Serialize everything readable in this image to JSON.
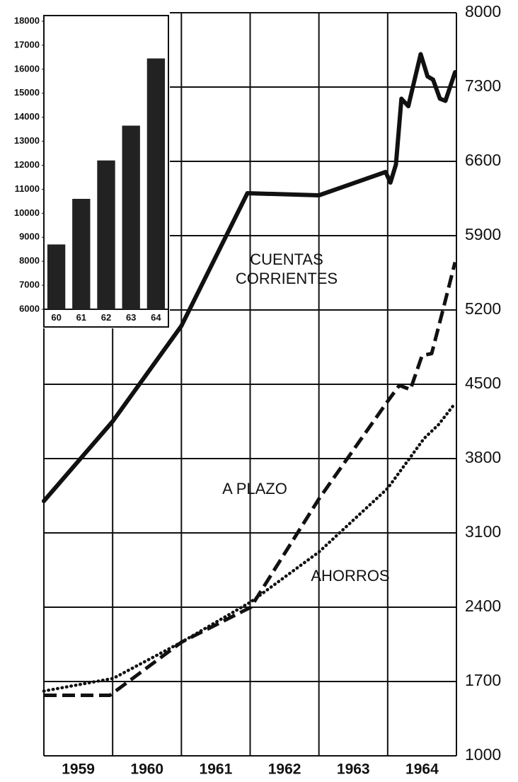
{
  "chart_data": [
    {
      "type": "line",
      "categories": [
        "1959",
        "1960",
        "1961",
        "1962",
        "1963",
        "1964"
      ],
      "xlim": [
        1959,
        1965
      ],
      "xgrid": [
        1959,
        1960,
        1961,
        1962,
        1963,
        1964,
        1965
      ],
      "ylim": [
        1000,
        8000
      ],
      "yticks": [
        1000,
        1700,
        2400,
        3100,
        3800,
        4500,
        5200,
        5900,
        6600,
        7300,
        8000
      ],
      "y_axis_side": "right",
      "grid": true,
      "series": [
        {
          "color": "#111111",
          "line_style": "solid",
          "x": [
            1959,
            1960,
            1961,
            1961.96,
            1963,
            1963.97,
            1964.04,
            1964.12,
            1964.2,
            1964.3,
            1964.48,
            1964.58,
            1964.66,
            1964.76,
            1964.84,
            1964.98
          ],
          "values": [
            3400,
            4150,
            5050,
            6300,
            6280,
            6500,
            6400,
            6570,
            7190,
            7120,
            7610,
            7400,
            7370,
            7190,
            7170,
            7440
          ]
        },
        {
          "color": "#111111",
          "line_style": "dashed",
          "x": [
            1959,
            1959.96,
            1961,
            1962.01,
            1963,
            1964,
            1964.17,
            1964.33,
            1964.5,
            1964.64,
            1964.8,
            1964.98
          ],
          "values": [
            1570,
            1570,
            2070,
            2400,
            3420,
            4340,
            4490,
            4450,
            4770,
            4790,
            5190,
            5650
          ]
        },
        {
          "color": "#111111",
          "line_style": "dotted",
          "x": [
            1959,
            1960.01,
            1961,
            1962.01,
            1963,
            1964,
            1964.53,
            1964.74,
            1964.98
          ],
          "values": [
            1610,
            1730,
            2070,
            2450,
            2920,
            3520,
            3990,
            4120,
            4320
          ]
        }
      ],
      "annotations": [
        "CUENTAS",
        "CORRIENTES",
        "A PLAZO",
        "AHORROS"
      ]
    },
    {
      "type": "bar",
      "categories": [
        "60",
        "61",
        "62",
        "63",
        "64"
      ],
      "values": [
        8700,
        10600,
        12200,
        13650,
        16450
      ],
      "color": "#222222",
      "ylim": [
        6000,
        18000
      ],
      "yticks": [
        6000,
        7000,
        8000,
        9000,
        10000,
        11000,
        12000,
        13000,
        14000,
        15000,
        16000,
        17000,
        18000
      ]
    }
  ]
}
